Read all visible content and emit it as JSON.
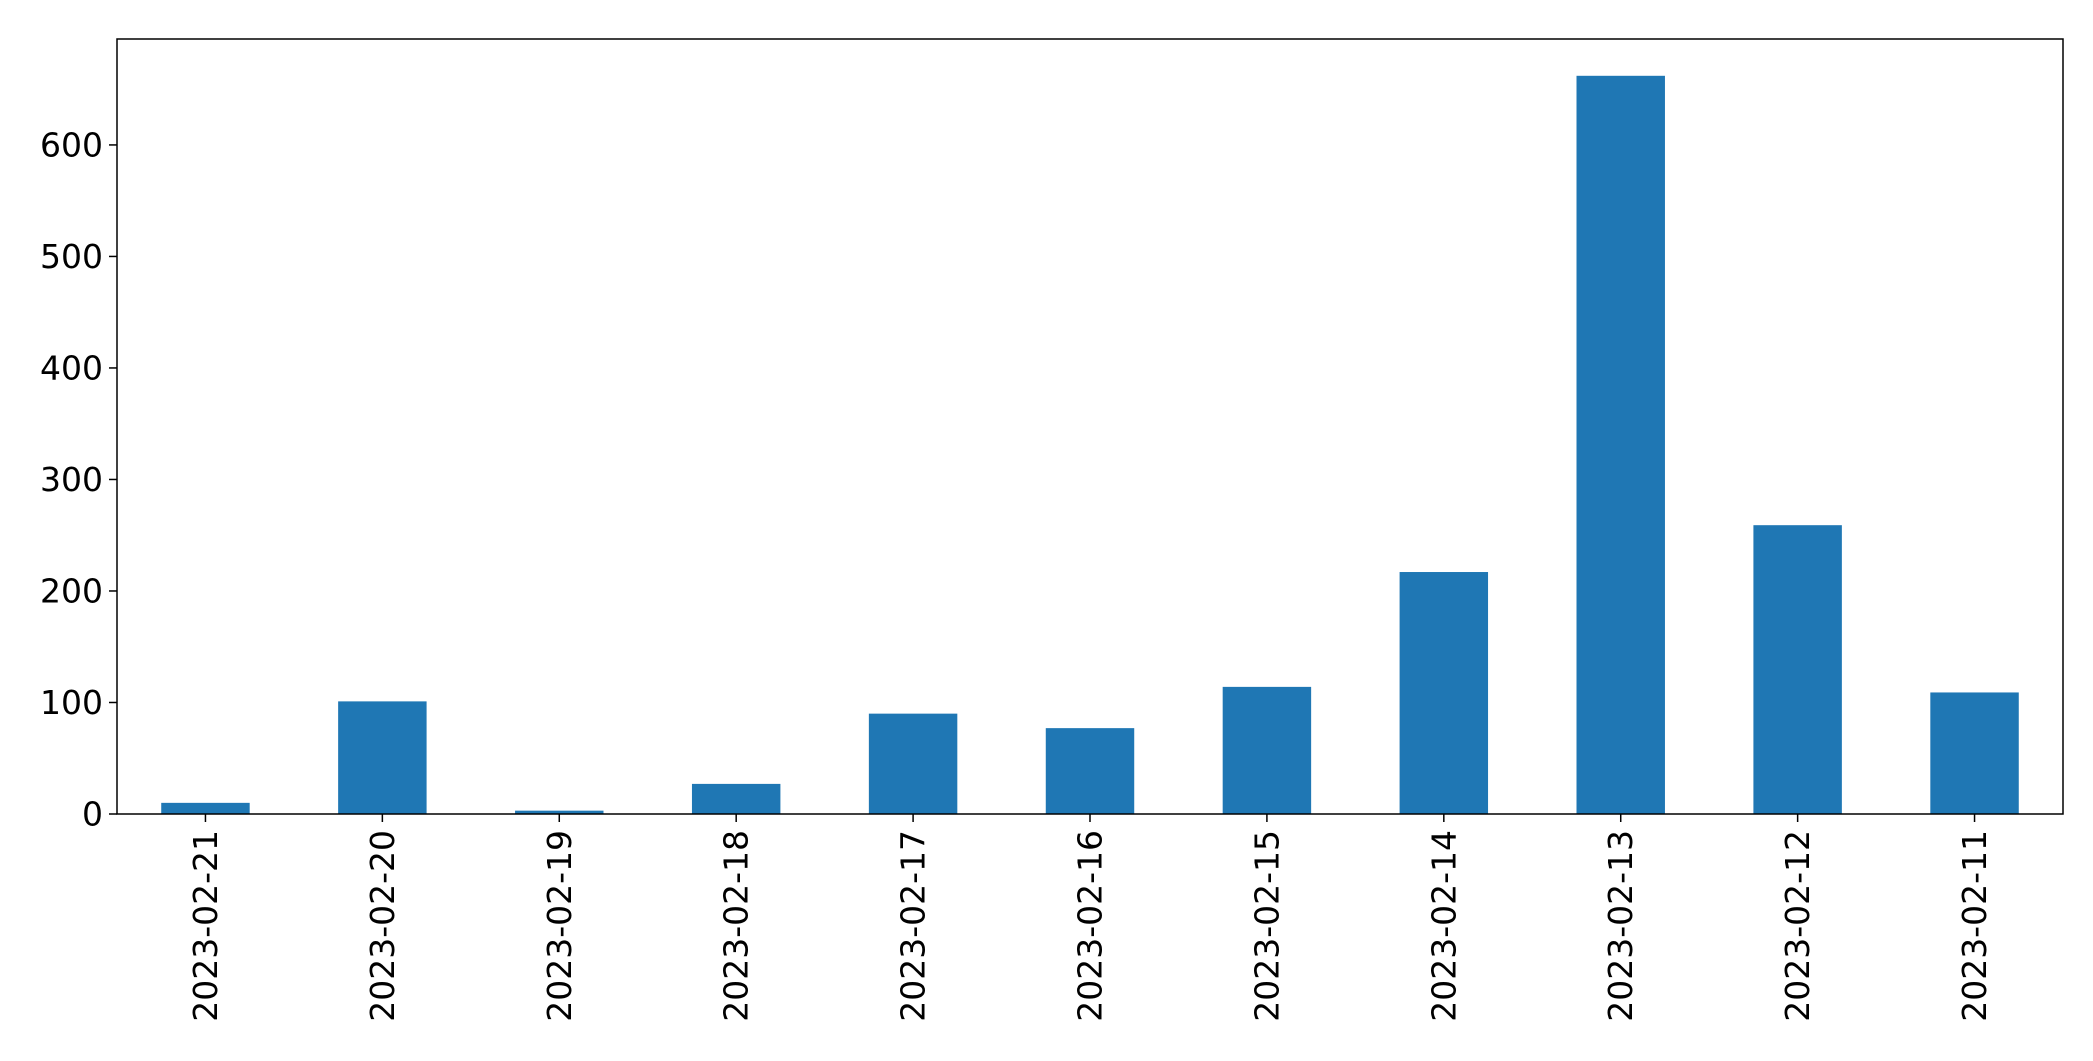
{
  "chart_data": {
    "type": "bar",
    "categories": [
      "2023-02-21",
      "2023-02-20",
      "2023-02-19",
      "2023-02-18",
      "2023-02-17",
      "2023-02-16",
      "2023-02-15",
      "2023-02-14",
      "2023-02-13",
      "2023-02-12",
      "2023-02-11"
    ],
    "values": [
      10,
      101,
      3,
      27,
      90,
      77,
      114,
      217,
      662,
      259,
      109
    ],
    "title": "",
    "xlabel": "",
    "ylabel": "",
    "ylim": [
      0,
      695
    ],
    "yticks": [
      "0",
      "100",
      "200",
      "300",
      "400",
      "500",
      "600"
    ],
    "grid": false,
    "legend": "none",
    "bar_color": "#1f77b4"
  }
}
